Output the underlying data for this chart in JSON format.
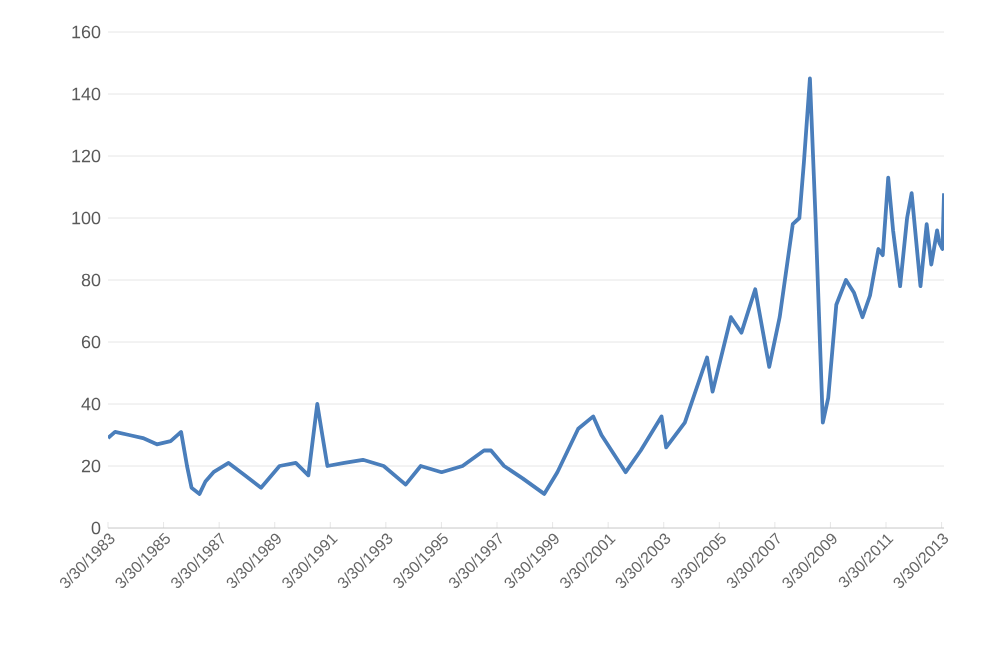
{
  "chart_data": {
    "type": "line",
    "color": "#4a7ebb",
    "grid": "y",
    "x": [
      "1983-03-30",
      "1983-07-01",
      "1984-01-01",
      "1984-07-01",
      "1985-01-01",
      "1985-07-01",
      "1985-11-15",
      "1986-02-01",
      "1986-04-01",
      "1986-07-15",
      "1986-10-01",
      "1987-01-15",
      "1987-08-01",
      "1988-03-01",
      "1988-10-01",
      "1989-06-01",
      "1990-01-01",
      "1990-06-15",
      "1990-10-10",
      "1990-12-15",
      "1991-02-20",
      "1991-10-01",
      "1992-06-01",
      "1993-03-01",
      "1993-12-15",
      "1994-07-01",
      "1995-04-01",
      "1996-01-01",
      "1996-10-10",
      "1997-01-10",
      "1997-07-01",
      "1998-03-01",
      "1998-12-10",
      "1999-06-01",
      "2000-03-01",
      "2000-09-15",
      "2001-01-01",
      "2001-11-15",
      "2002-06-01",
      "2003-03-01",
      "2003-05-01",
      "2004-01-01",
      "2004-10-20",
      "2005-01-01",
      "2005-08-30",
      "2006-01-15",
      "2006-07-15",
      "2007-01-15",
      "2007-06-01",
      "2007-11-20",
      "2008-02-15",
      "2008-04-15",
      "2008-07-03",
      "2008-09-15",
      "2008-12-20",
      "2009-03-01",
      "2009-06-15",
      "2009-10-20",
      "2010-02-01",
      "2010-05-25",
      "2010-09-01",
      "2010-12-20",
      "2011-02-15",
      "2011-04-28",
      "2011-07-01",
      "2011-10-01",
      "2012-01-01",
      "2012-03-01",
      "2012-06-25",
      "2012-09-15",
      "2012-11-15",
      "2013-01-30",
      "2013-03-01",
      "2013-04-10",
      "2013-05-01"
    ],
    "values": [
      29,
      31,
      30,
      29,
      27,
      28,
      31,
      20,
      13,
      11,
      15,
      18,
      21,
      17,
      13,
      20,
      21,
      17,
      40,
      30,
      20,
      21,
      22,
      20,
      14,
      20,
      18,
      20,
      25,
      25,
      20,
      16,
      11,
      18,
      32,
      36,
      30,
      18,
      25,
      36,
      26,
      34,
      55,
      44,
      68,
      63,
      77,
      52,
      68,
      98,
      100,
      118,
      145,
      100,
      34,
      42,
      72,
      80,
      76,
      68,
      75,
      90,
      88,
      113,
      96,
      78,
      100,
      108,
      78,
      98,
      85,
      96,
      92,
      90,
      108
    ],
    "xlim": [
      "1983-03-30",
      "2013-05-01"
    ],
    "xticks": [
      {
        "value": "1983-03-30",
        "label": "3/30/1983"
      },
      {
        "value": "1985-03-30",
        "label": "3/30/1985"
      },
      {
        "value": "1987-03-30",
        "label": "3/30/1987"
      },
      {
        "value": "1989-03-30",
        "label": "3/30/1989"
      },
      {
        "value": "1991-03-30",
        "label": "3/30/1991"
      },
      {
        "value": "1993-03-30",
        "label": "3/30/1993"
      },
      {
        "value": "1995-03-30",
        "label": "3/30/1995"
      },
      {
        "value": "1997-03-30",
        "label": "3/30/1997"
      },
      {
        "value": "1999-03-30",
        "label": "3/30/1999"
      },
      {
        "value": "2001-03-30",
        "label": "3/30/2001"
      },
      {
        "value": "2003-03-30",
        "label": "3/30/2003"
      },
      {
        "value": "2005-03-30",
        "label": "3/30/2005"
      },
      {
        "value": "2007-03-30",
        "label": "3/30/2007"
      },
      {
        "value": "2009-03-30",
        "label": "3/30/2009"
      },
      {
        "value": "2011-03-30",
        "label": "3/30/2011"
      },
      {
        "value": "2013-03-30",
        "label": "3/30/2013"
      }
    ],
    "ylim": [
      0,
      160
    ],
    "yticks": [
      0,
      20,
      40,
      60,
      80,
      100,
      120,
      140,
      160
    ]
  }
}
